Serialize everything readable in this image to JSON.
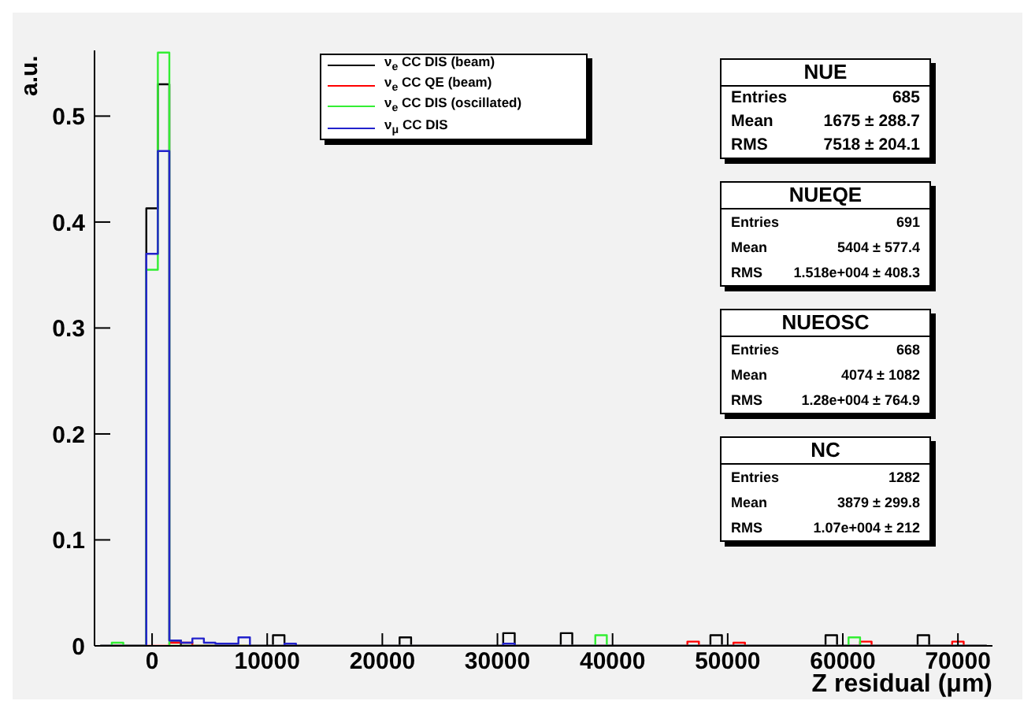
{
  "chart_data": {
    "type": "histogram",
    "xlabel": "Z residual (μm)",
    "ylabel": "a.u.",
    "bins": [
      -4500,
      -3500,
      -2500,
      -1500,
      -500,
      500,
      1500,
      2500,
      3500,
      4500,
      5500,
      6500,
      7500,
      8500,
      9500,
      10500,
      11500,
      12500,
      13500,
      14500,
      15500,
      16500,
      17500,
      18500,
      19500,
      20500,
      21500,
      22500,
      23500,
      24500,
      25500,
      26500,
      27500,
      28500,
      29500,
      30500,
      31500,
      32500,
      33500,
      34500,
      35500,
      36500,
      37500,
      38500,
      39500,
      40500,
      41500,
      42500,
      43500,
      44500,
      45500,
      46500,
      47500,
      48500,
      49500,
      50500,
      51500,
      52500,
      53500,
      54500,
      55500,
      56500,
      57500,
      58500,
      59500,
      60500,
      61500,
      62500,
      63500,
      64500,
      65500,
      66500,
      67500,
      68500,
      69500,
      70500,
      71500,
      72500
    ],
    "series": [
      {
        "name": "ν$_{e}$ CC DIS (beam)",
        "color": "#000000",
        "values": [
          0,
          0,
          0,
          0,
          0.413,
          0.53,
          0.005,
          0,
          0,
          0,
          0,
          0,
          0,
          0,
          0,
          0.01,
          0,
          0,
          0,
          0,
          0,
          0,
          0,
          0,
          0,
          0,
          0.008,
          0,
          0,
          0,
          0,
          0,
          0,
          0,
          0,
          0.012,
          0,
          0,
          0,
          0,
          0.012,
          0,
          0,
          0,
          0,
          0,
          0,
          0,
          0,
          0,
          0,
          0,
          0,
          0.01,
          0,
          0,
          0,
          0,
          0,
          0,
          0,
          0,
          0,
          0.01,
          0,
          0,
          0,
          0,
          0,
          0,
          0,
          0.01,
          0,
          0,
          0,
          0,
          0
        ]
      },
      {
        "name": "ν$_{e}$ CC QE (beam)",
        "color": "#ff0000",
        "values": [
          0,
          0,
          0,
          0,
          0,
          0,
          0.003,
          0.003,
          0,
          0,
          0,
          0,
          0,
          0,
          0,
          0,
          0,
          0,
          0,
          0,
          0,
          0,
          0,
          0,
          0,
          0,
          0,
          0,
          0,
          0,
          0,
          0,
          0,
          0,
          0,
          0,
          0,
          0,
          0,
          0,
          0,
          0,
          0,
          0,
          0,
          0,
          0,
          0,
          0,
          0,
          0,
          0.004,
          0,
          0,
          0,
          0.003,
          0,
          0,
          0,
          0,
          0,
          0,
          0,
          0,
          0,
          0,
          0.004,
          0,
          0,
          0,
          0,
          0,
          0,
          0,
          0.004,
          0,
          0
        ]
      },
      {
        "name": "ν$_{e}$ CC DIS (oscillated)",
        "color": "#33ee33",
        "values": [
          0,
          0.003,
          0,
          0,
          0.355,
          0.56,
          0,
          0,
          0,
          0,
          0,
          0,
          0,
          0,
          0,
          0,
          0,
          0,
          0,
          0,
          0,
          0,
          0,
          0,
          0,
          0,
          0,
          0,
          0,
          0,
          0,
          0,
          0,
          0,
          0,
          0,
          0,
          0,
          0,
          0,
          0,
          0,
          0,
          0.01,
          0,
          0,
          0,
          0,
          0,
          0,
          0,
          0,
          0,
          0,
          0,
          0,
          0,
          0,
          0,
          0,
          0,
          0,
          0,
          0,
          0,
          0.008,
          0,
          0,
          0,
          0,
          0,
          0,
          0,
          0,
          0,
          0,
          0
        ]
      },
      {
        "name": "ν$_{μ}$ CC DIS",
        "color": "#2222cc",
        "values": [
          0,
          0,
          0,
          0,
          0.37,
          0.467,
          0.005,
          0.003,
          0.007,
          0.003,
          0.002,
          0.002,
          0.008,
          0,
          0,
          0,
          0.002,
          0,
          0,
          0,
          0,
          0,
          0,
          0,
          0,
          0,
          0,
          0,
          0,
          0,
          0,
          0,
          0,
          0,
          0,
          0.002,
          0,
          0,
          0,
          0,
          0,
          0,
          0,
          0,
          0,
          0,
          0,
          0,
          0,
          0,
          0,
          0,
          0,
          0,
          0,
          0,
          0,
          0,
          0,
          0,
          0,
          0,
          0,
          0,
          0,
          0,
          0,
          0,
          0,
          0,
          0,
          0,
          0,
          0,
          0,
          0,
          0
        ]
      }
    ],
    "xlim": [
      -5000,
      73000
    ],
    "xticks": [
      0,
      10000,
      20000,
      30000,
      40000,
      50000,
      60000,
      70000
    ],
    "ylim": [
      0,
      0.562
    ],
    "yticks": [
      0,
      0.1,
      0.2,
      0.3,
      0.4,
      0.5
    ],
    "legend": "top",
    "grid": false,
    "annotations": [
      "NUE",
      "Entries 685",
      "Mean 1675 ± 288.7",
      "RMS 7518 ± 204.1",
      "NUEQE",
      "Entries 691",
      "Mean 5404 ± 577.4",
      "RMS 1.518e+004 ± 408.3",
      "NUEOSC",
      "Entries 668",
      "Mean 4074 ± 1082",
      "RMS 1.28e+004 ± 764.9",
      "NC",
      "Entries 1282",
      "Mean 3879 ± 299.8",
      "RMS 1.07e+004 ± 212"
    ]
  }
}
